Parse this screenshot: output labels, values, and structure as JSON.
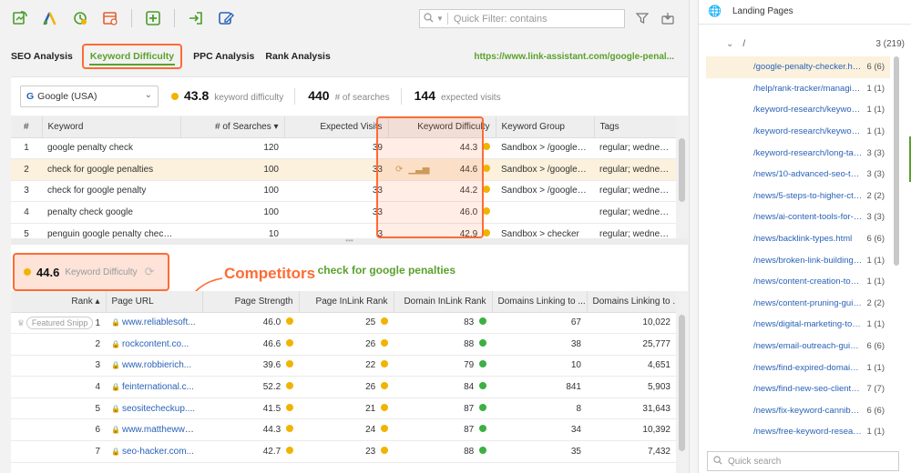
{
  "toolbar": {
    "icons": [
      "refresh-report-icon",
      "google-ads-icon",
      "update-icon",
      "schedule-icon",
      "add-icon",
      "import-icon",
      "edit-icon"
    ],
    "quick_filter_placeholder": "Quick Filter: contains"
  },
  "tabs": [
    {
      "label": "SEO Analysis",
      "active": false
    },
    {
      "label": "Keyword Difficulty",
      "active": true
    },
    {
      "label": "PPC Analysis",
      "active": false
    },
    {
      "label": "Rank Analysis",
      "active": false
    }
  ],
  "url": "https://www.link-assistant.com/google-penal...",
  "summary": {
    "engine": "Google (USA)",
    "kd_value": "43.8",
    "kd_label": "keyword difficulty",
    "searches_value": "440",
    "searches_label": "# of searches",
    "visits_value": "144",
    "visits_label": "expected visits"
  },
  "keywords_table": {
    "headers": [
      "#",
      "Keyword",
      "# of Searches ▾",
      "Expected Visits",
      "Keyword Difficulty",
      "Keyword Group",
      "Tags"
    ],
    "rows": [
      {
        "n": "1",
        "keyword": "google penalty check",
        "searches": "120",
        "visits": "39",
        "kd": "44.3",
        "group": "Sandbox > /google-p...",
        "tags": "regular; wednesday"
      },
      {
        "n": "2",
        "keyword": "check for google penalties",
        "searches": "100",
        "visits": "33",
        "kd": "44.6",
        "group": "Sandbox > /google-p...",
        "tags": "regular; wednesday"
      },
      {
        "n": "3",
        "keyword": "check for google penalty",
        "searches": "100",
        "visits": "33",
        "kd": "44.2",
        "group": "Sandbox > /google-p...",
        "tags": "regular; wednesday"
      },
      {
        "n": "4",
        "keyword": "penalty check google",
        "searches": "100",
        "visits": "33",
        "kd": "46.0",
        "group": "",
        "tags": "regular; wednesday"
      },
      {
        "n": "5",
        "keyword": "penguin google penalty checker tool",
        "searches": "10",
        "visits": "3",
        "kd": "42.9",
        "group": "Sandbox > checker",
        "tags": "regular; wednesday"
      }
    ]
  },
  "kd_box": {
    "value": "44.6",
    "label": "Keyword Difficulty"
  },
  "competitors_label": "Competitors",
  "phrase": "check for google penalties",
  "competitors_table": {
    "headers": [
      "Rank ▴",
      "Page URL",
      "Page Strength",
      "Page InLink Rank",
      "Domain InLink Rank",
      "Domains Linking to ...",
      "Domains Linking to ..."
    ],
    "featured_badge": "Featured Snipp",
    "rows": [
      {
        "rank": "1",
        "url": "www.reliablesoft...",
        "strength": "46.0",
        "page_ir": "25",
        "domain_ir": "83",
        "dl_page": "67",
        "dl_domain": "10,022"
      },
      {
        "rank": "2",
        "url": "rockcontent.co...",
        "strength": "46.6",
        "page_ir": "26",
        "domain_ir": "88",
        "dl_page": "38",
        "dl_domain": "25,777"
      },
      {
        "rank": "3",
        "url": "www.robbierich...",
        "strength": "39.6",
        "page_ir": "22",
        "domain_ir": "79",
        "dl_page": "10",
        "dl_domain": "4,651"
      },
      {
        "rank": "4",
        "url": "feinternational.c...",
        "strength": "52.2",
        "page_ir": "26",
        "domain_ir": "84",
        "dl_page": "841",
        "dl_domain": "5,903"
      },
      {
        "rank": "5",
        "url": "seositecheckup....",
        "strength": "41.5",
        "page_ir": "21",
        "domain_ir": "87",
        "dl_page": "8",
        "dl_domain": "31,643"
      },
      {
        "rank": "6",
        "url": "www.matthewww...",
        "strength": "44.3",
        "page_ir": "24",
        "domain_ir": "87",
        "dl_page": "34",
        "dl_domain": "10,392"
      },
      {
        "rank": "7",
        "url": "seo-hacker.com...",
        "strength": "42.7",
        "page_ir": "23",
        "domain_ir": "88",
        "dl_page": "35",
        "dl_domain": "7,432"
      }
    ]
  },
  "landing_pages": {
    "title": "Landing Pages",
    "root_label": "/",
    "root_count": "3 (219)",
    "items": [
      {
        "path": "/google-penalty-checker.html",
        "count": "6 (6)"
      },
      {
        "path": "/help/rank-tracker/managing-...",
        "count": "1 (1)"
      },
      {
        "path": "/keyword-research/keyword-...",
        "count": "1 (1)"
      },
      {
        "path": "/keyword-research/keyword-...",
        "count": "1 (1)"
      },
      {
        "path": "/keyword-research/long-tail-...",
        "count": "3 (3)"
      },
      {
        "path": "/news/10-advanced-seo-tec...",
        "count": "3 (3)"
      },
      {
        "path": "/news/5-steps-to-higher-ctr....",
        "count": "2 (2)"
      },
      {
        "path": "/news/ai-content-tools-for-se...",
        "count": "3 (3)"
      },
      {
        "path": "/news/backlink-types.html",
        "count": "6 (6)"
      },
      {
        "path": "/news/broken-link-building.ht...",
        "count": "1 (1)"
      },
      {
        "path": "/news/content-creation-tools....",
        "count": "1 (1)"
      },
      {
        "path": "/news/content-pruning-guide....",
        "count": "2 (2)"
      },
      {
        "path": "/news/digital-marketing-tools....",
        "count": "1 (1)"
      },
      {
        "path": "/news/email-outreach-guide....",
        "count": "6 (6)"
      },
      {
        "path": "/news/find-expired-domains....",
        "count": "1 (1)"
      },
      {
        "path": "/news/find-new-seo-clients.h...",
        "count": "7 (7)"
      },
      {
        "path": "/news/fix-keyword-cannibaliz...",
        "count": "6 (6)"
      },
      {
        "path": "/news/free-keyword-researc...",
        "count": "1 (1)"
      }
    ],
    "search_placeholder": "Quick search"
  },
  "colors": {
    "accent_green": "#5aa12c",
    "highlight_orange": "#ff6b35",
    "link_blue": "#2a62b8",
    "dot_yellow": "#f0b400",
    "dot_green": "#3cb043"
  }
}
